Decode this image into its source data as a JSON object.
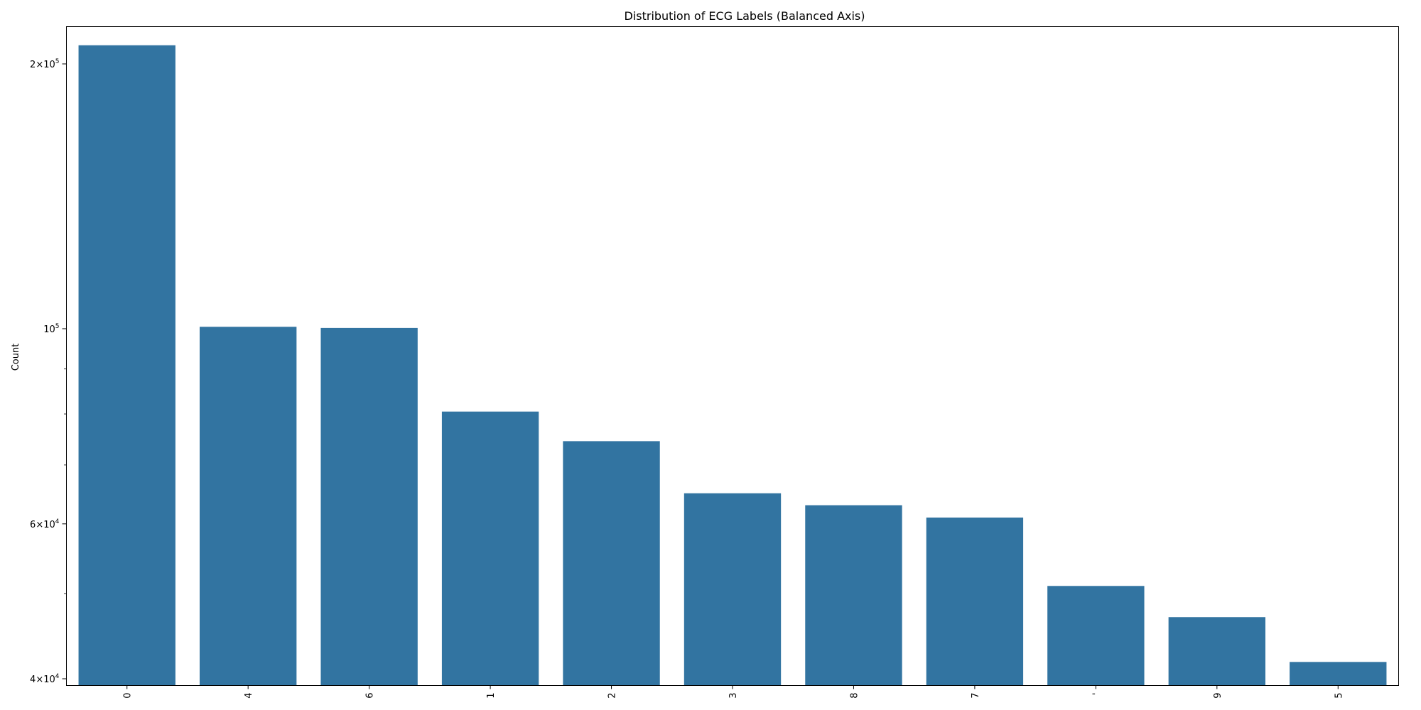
{
  "chart_data": {
    "type": "bar",
    "title": "Distribution of ECG Labels (Balanced Axis)",
    "xlabel": "",
    "ylabel": "Count",
    "yscale": "log",
    "ylim": [
      39300,
      220500
    ],
    "categories": [
      "0",
      "4",
      "6",
      "1",
      "2",
      "3",
      "8",
      "7",
      "'",
      "9",
      "5"
    ],
    "values": [
      210000,
      100500,
      100200,
      80500,
      74500,
      65000,
      63000,
      61000,
      51000,
      47000,
      41800
    ],
    "bar_color": "#3274a1",
    "grid": false,
    "legend": "none",
    "y_ticks": [
      {
        "value": 40000,
        "mantissa": "4",
        "exponent": "4"
      },
      {
        "value": 60000,
        "mantissa": "6",
        "exponent": "4"
      },
      {
        "value": 100000,
        "mantissa": "",
        "exponent": "5"
      },
      {
        "value": 200000,
        "mantissa": "2",
        "exponent": "5"
      }
    ],
    "y_minor_ticks": [
      50000,
      70000,
      80000,
      90000
    ]
  }
}
